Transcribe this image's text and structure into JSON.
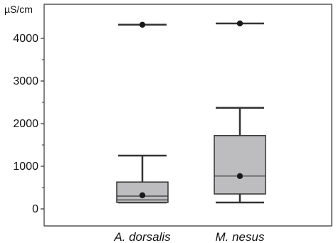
{
  "chart_data": {
    "type": "boxplot",
    "y_unit_label": "µS/cm",
    "ylim": [
      -400,
      4800
    ],
    "y_ticks": [
      0,
      1000,
      2000,
      3000,
      4000
    ],
    "y_minor_ticks": [
      500,
      1500,
      2500,
      3500
    ],
    "grid": false,
    "legend": "none",
    "colors": {
      "box_fill": "#bdbdc0",
      "box_stroke": "#333333",
      "axis": "#333333",
      "marker": "#1a1a1a"
    },
    "categories": [
      "A. dorsalis",
      "M. nesus"
    ],
    "boxes": [
      {
        "category": "A. dorsalis",
        "whisker_low": 150,
        "q1": 150,
        "median": 300,
        "q3": 630,
        "whisker_high": 1250,
        "extra_line": 210,
        "mean": 320,
        "outlier": 4320
      },
      {
        "category": "M. nesus",
        "whisker_low": 150,
        "q1": 350,
        "median": 770,
        "q3": 1720,
        "whisker_high": 2370,
        "mean": 770,
        "outlier": 4350
      }
    ]
  }
}
